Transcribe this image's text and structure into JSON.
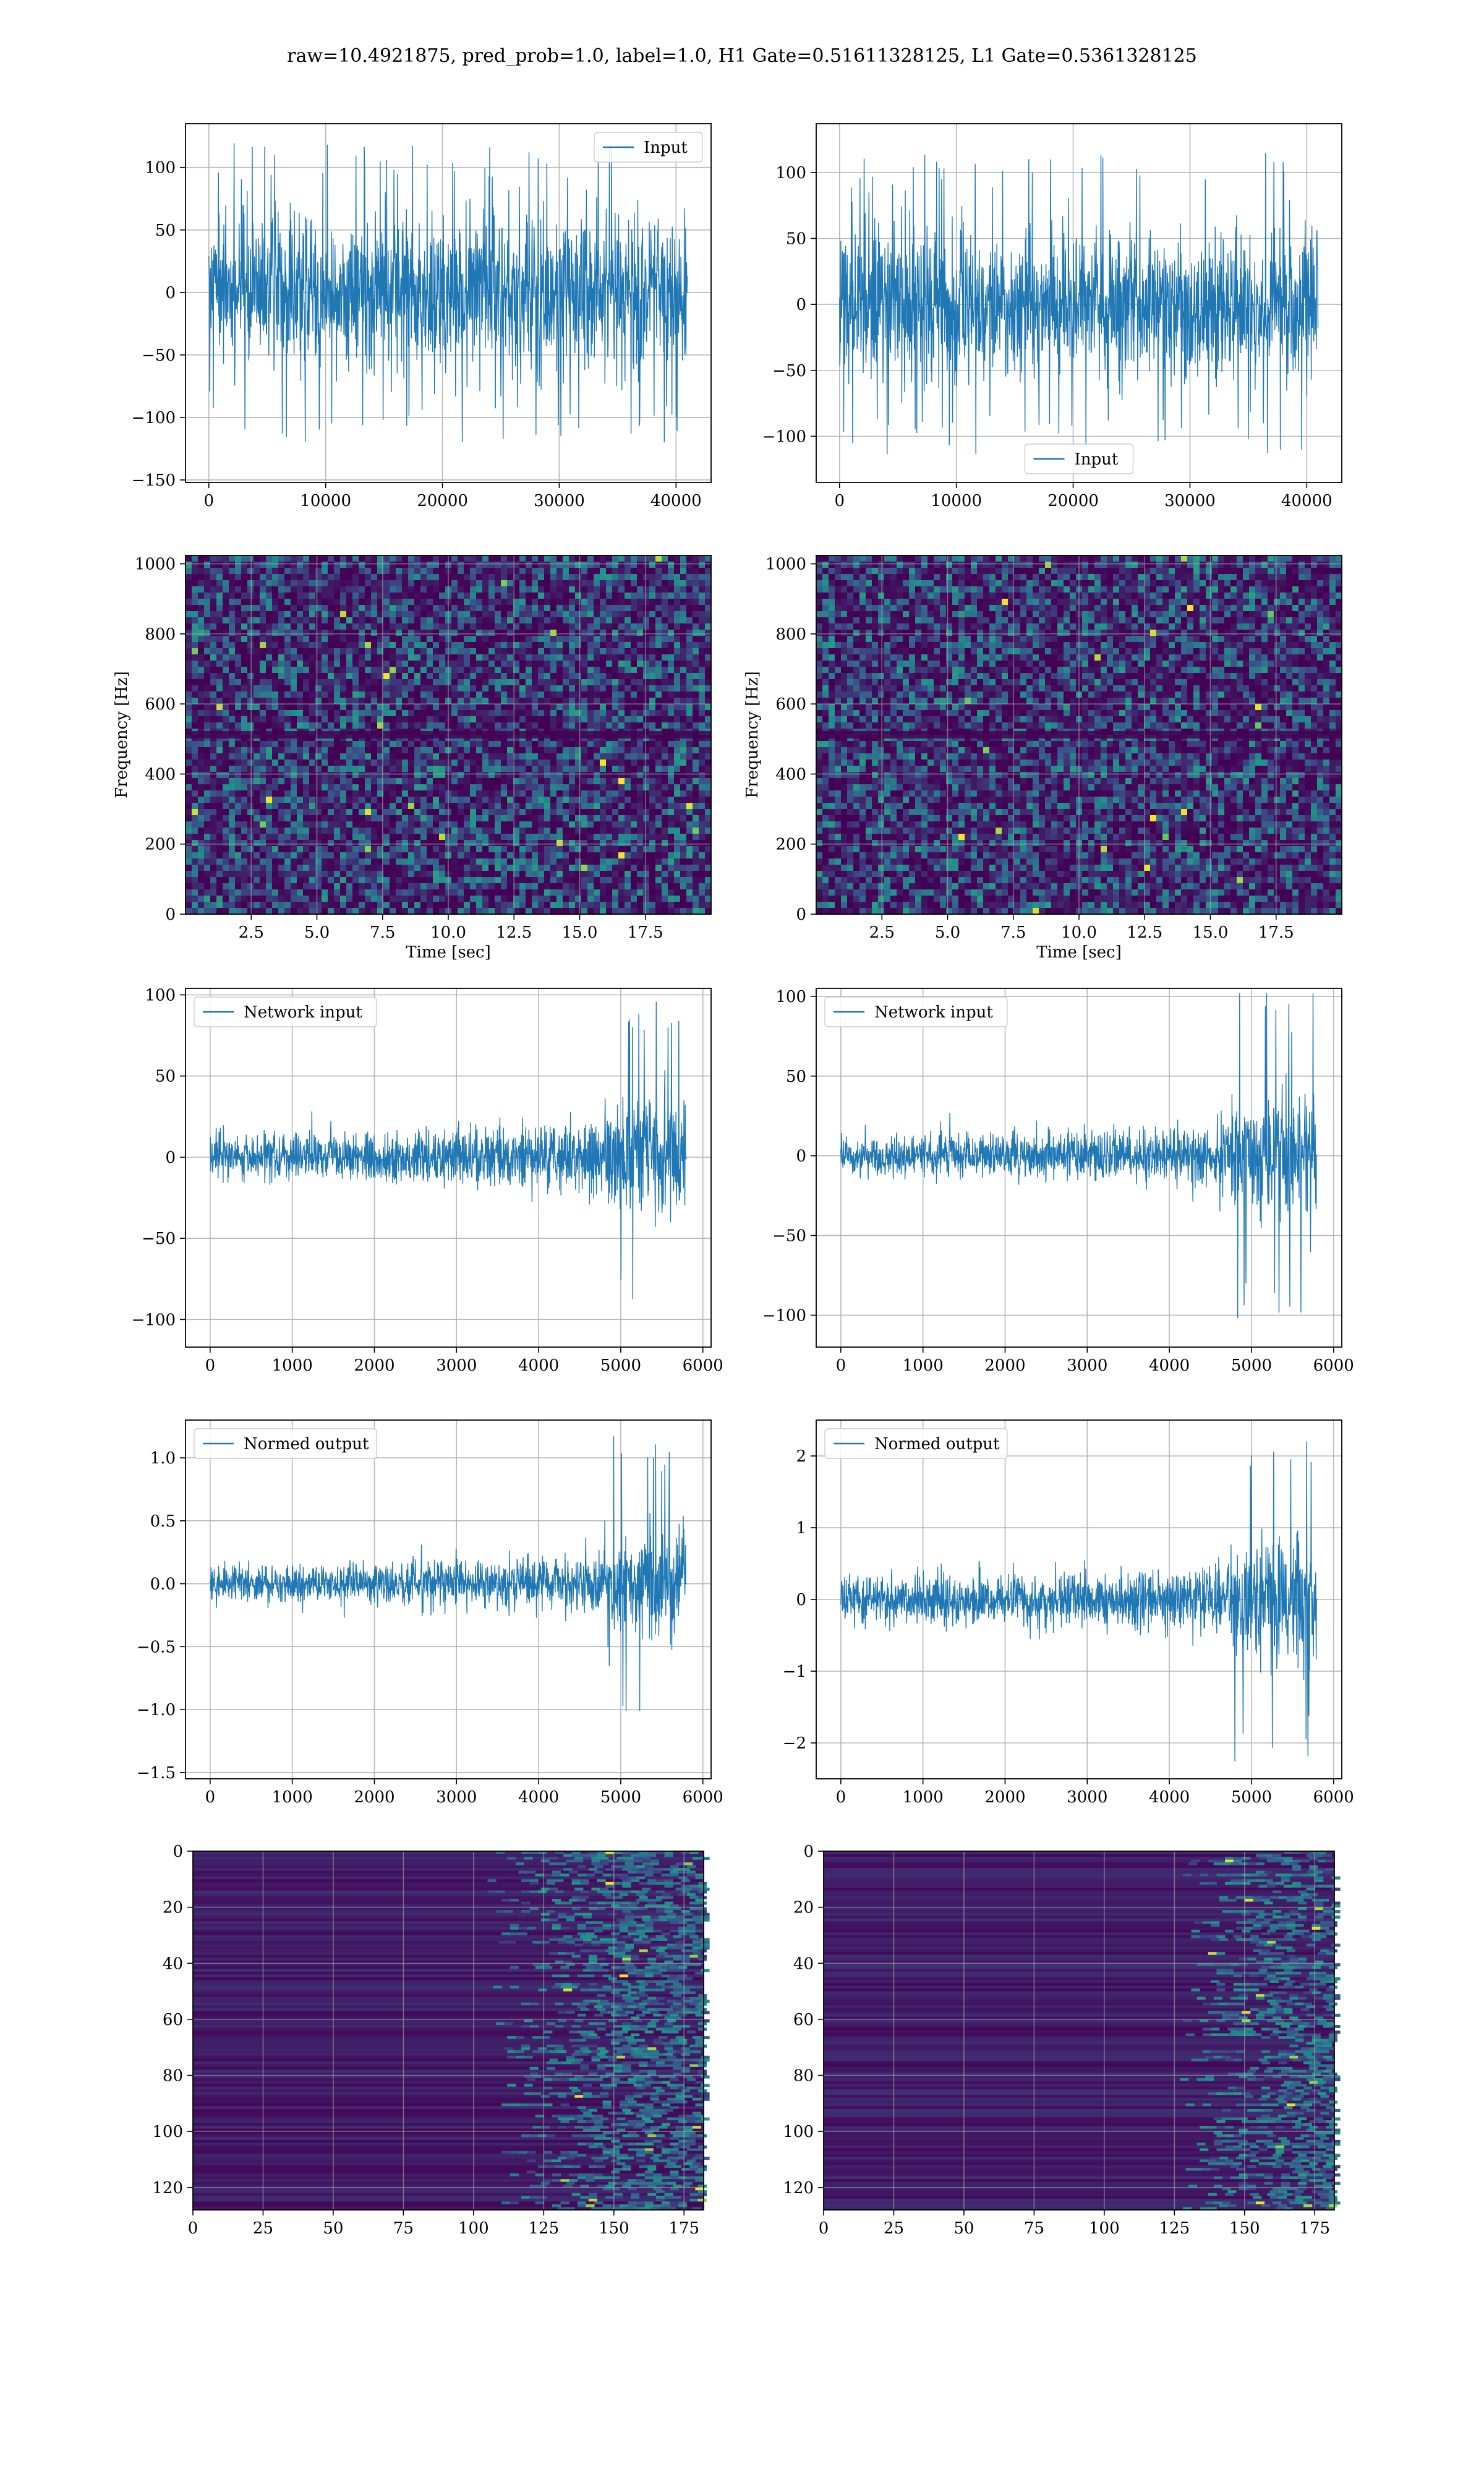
{
  "figure": {
    "title": "raw=10.4921875, pred_prob=1.0, label=1.0, H1 Gate=0.51611328125, L1 Gate=0.5361328125"
  },
  "colors": {
    "line": "#1f77b4",
    "grid": "#b0b0b0",
    "viridis_dark": "#440154",
    "viridis_mid": "#21918c",
    "viridis_bright": "#fde725"
  },
  "chart_data": [
    {
      "id": "input-h1",
      "type": "line",
      "row": 0,
      "col": 0,
      "series": [
        {
          "name": "Input",
          "n_samples": 40960,
          "x_range": [
            0,
            40960
          ],
          "envelope": "stationary noise",
          "core_amplitude": 55,
          "peak_amplitude": 120
        }
      ],
      "xlim": [
        -2000,
        43000
      ],
      "ylim": [
        -152,
        135
      ],
      "xticks": [
        0,
        10000,
        20000,
        30000,
        40000
      ],
      "yticks": [
        -150,
        -100,
        -50,
        0,
        50,
        100
      ],
      "legend": "upper right",
      "grid": true,
      "xlabel": "",
      "ylabel": ""
    },
    {
      "id": "input-l1",
      "type": "line",
      "row": 0,
      "col": 1,
      "series": [
        {
          "name": "Input",
          "n_samples": 40960,
          "x_range": [
            0,
            40960
          ],
          "envelope": "stationary noise",
          "core_amplitude": 52,
          "peak_amplitude": 115
        }
      ],
      "xlim": [
        -2000,
        43000
      ],
      "ylim": [
        -135,
        137
      ],
      "xticks": [
        0,
        10000,
        20000,
        30000,
        40000
      ],
      "yticks": [
        -100,
        -50,
        0,
        50,
        100
      ],
      "legend": "lower center",
      "grid": true,
      "xlabel": "",
      "ylabel": ""
    },
    {
      "id": "spectrogram-h1",
      "type": "heatmap",
      "row": 1,
      "col": 0,
      "xlim": [
        0,
        20
      ],
      "ylim": [
        0,
        1024
      ],
      "xticks": [
        2.5,
        5.0,
        7.5,
        10.0,
        12.5,
        15.0,
        17.5
      ],
      "yticks": [
        0,
        200,
        400,
        600,
        800,
        1000
      ],
      "xtick_labels": [
        "2.5",
        "5.0",
        "7.5",
        "10.0",
        "12.5",
        "15.0",
        "17.5"
      ],
      "xlabel": "Time [sec]",
      "ylabel": "Frequency [Hz]",
      "colormap": "viridis",
      "grid": true
    },
    {
      "id": "spectrogram-l1",
      "type": "heatmap",
      "row": 1,
      "col": 1,
      "xlim": [
        0,
        20
      ],
      "ylim": [
        0,
        1024
      ],
      "xticks": [
        2.5,
        5.0,
        7.5,
        10.0,
        12.5,
        15.0,
        17.5
      ],
      "yticks": [
        0,
        200,
        400,
        600,
        800,
        1000
      ],
      "xtick_labels": [
        "2.5",
        "5.0",
        "7.5",
        "10.0",
        "12.5",
        "15.0",
        "17.5"
      ],
      "xlabel": "Time [sec]",
      "ylabel": "Frequency [Hz]",
      "colormap": "viridis",
      "grid": true
    },
    {
      "id": "network-input-h1",
      "type": "line",
      "row": 2,
      "col": 0,
      "series": [
        {
          "name": "Network input",
          "n_samples": 5800,
          "x_range": [
            0,
            5800
          ],
          "envelope": "chirp rising to 5600",
          "base_amplitude": 13,
          "peak_amplitude": 96,
          "chirp_start": 4800,
          "chirp_end": 5750
        }
      ],
      "xlim": [
        -300,
        6100
      ],
      "ylim": [
        -117,
        104
      ],
      "xticks": [
        0,
        1000,
        2000,
        3000,
        4000,
        5000,
        6000
      ],
      "yticks": [
        -100,
        -50,
        0,
        50,
        100
      ],
      "legend": "upper left",
      "grid": true,
      "xlabel": "",
      "ylabel": ""
    },
    {
      "id": "network-input-l1",
      "type": "line",
      "row": 2,
      "col": 1,
      "series": [
        {
          "name": "Network input",
          "n_samples": 5800,
          "x_range": [
            0,
            5800
          ],
          "envelope": "chirp rising to 5600",
          "base_amplitude": 12,
          "peak_amplitude": 110,
          "chirp_start": 4750,
          "chirp_end": 5750
        }
      ],
      "xlim": [
        -300,
        6100
      ],
      "ylim": [
        -120,
        105
      ],
      "xticks": [
        0,
        1000,
        2000,
        3000,
        4000,
        5000,
        6000
      ],
      "yticks": [
        -100,
        -50,
        0,
        50,
        100
      ],
      "legend": "upper left",
      "grid": true,
      "xlabel": "",
      "ylabel": ""
    },
    {
      "id": "normed-output-h1",
      "type": "line",
      "row": 3,
      "col": 0,
      "series": [
        {
          "name": "Normed output",
          "n_samples": 5800,
          "x_range": [
            0,
            5800
          ],
          "envelope": "chirp rising to 5600",
          "base_amplitude": 0.14,
          "peak_amplitude": 1.2,
          "chirp_start": 4800,
          "chirp_end": 5750
        }
      ],
      "xlim": [
        -300,
        6100
      ],
      "ylim": [
        -1.55,
        1.3
      ],
      "xticks": [
        0,
        1000,
        2000,
        3000,
        4000,
        5000,
        6000
      ],
      "yticks": [
        -1.5,
        -1.0,
        -0.5,
        0.0,
        0.5,
        1.0
      ],
      "ytick_labels": [
        "−1.5",
        "−1.0",
        "−0.5",
        "0.0",
        "0.5",
        "1.0"
      ],
      "legend": "upper left",
      "grid": true,
      "xlabel": "",
      "ylabel": ""
    },
    {
      "id": "normed-output-l1",
      "type": "line",
      "row": 3,
      "col": 1,
      "series": [
        {
          "name": "Normed output",
          "n_samples": 5800,
          "x_range": [
            0,
            5800
          ],
          "envelope": "chirp rising to 5600",
          "base_amplitude": 0.3,
          "peak_amplitude": 2.3,
          "chirp_start": 4750,
          "chirp_end": 5750
        }
      ],
      "xlim": [
        -300,
        6100
      ],
      "ylim": [
        -2.5,
        2.5
      ],
      "xticks": [
        0,
        1000,
        2000,
        3000,
        4000,
        5000,
        6000
      ],
      "yticks": [
        -2,
        -1,
        0,
        1,
        2
      ],
      "ytick_labels": [
        "−2",
        "−1",
        "0",
        "1",
        "2"
      ],
      "legend": "upper left",
      "grid": true,
      "xlabel": "",
      "ylabel": ""
    },
    {
      "id": "feature-map-h1",
      "type": "heatmap",
      "row": 4,
      "col": 0,
      "n_cols": 182,
      "n_rows": 128,
      "active_from_col": 105,
      "xlim": [
        0,
        182
      ],
      "ylim": [
        128,
        0
      ],
      "y_inverted": true,
      "xticks": [
        0,
        25,
        50,
        75,
        100,
        125,
        150,
        175
      ],
      "yticks": [
        0,
        20,
        40,
        60,
        80,
        100,
        120
      ],
      "colormap": "viridis",
      "grid": true,
      "xlabel": "",
      "ylabel": ""
    },
    {
      "id": "feature-map-l1",
      "type": "heatmap",
      "row": 4,
      "col": 1,
      "n_cols": 182,
      "n_rows": 128,
      "active_from_col": 125,
      "xlim": [
        0,
        182
      ],
      "ylim": [
        128,
        0
      ],
      "y_inverted": true,
      "xticks": [
        0,
        25,
        50,
        75,
        100,
        125,
        150,
        175
      ],
      "yticks": [
        0,
        20,
        40,
        60,
        80,
        100,
        120
      ],
      "colormap": "viridis",
      "grid": true,
      "xlabel": "",
      "ylabel": ""
    }
  ]
}
